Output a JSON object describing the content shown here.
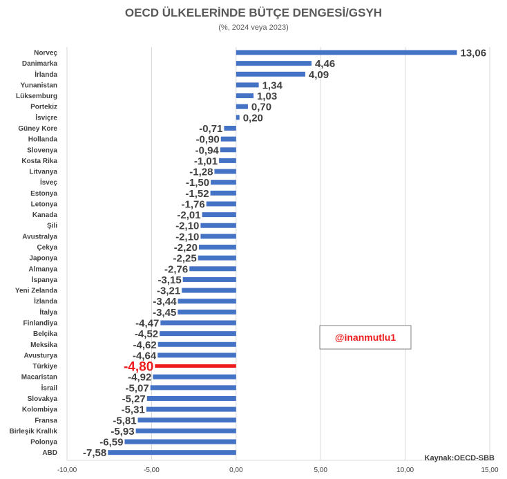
{
  "chart_data": {
    "type": "bar",
    "orientation": "horizontal",
    "title": "OECD ÜLKELERİNDE BÜTÇE DENGESİ/GSYH",
    "subtitle": "(%, 2024 veya 2023)",
    "categories": [
      "Norveç",
      "Danimarka",
      "İrlanda",
      "Yunanistan",
      "Lüksemburg",
      "Portekiz",
      "İsviçre",
      "Güney Kore",
      "Hollanda",
      "Slovenya",
      "Kosta Rika",
      "Litvanya",
      "İsveç",
      "Estonya",
      "Letonya",
      "Kanada",
      "Şili",
      "Avustralya",
      "Çekya",
      "Japonya",
      "Almanya",
      "İspanya",
      "Yeni Zelanda",
      "İzlanda",
      "İtalya",
      "Finlandiya",
      "Belçika",
      "Meksika",
      "Avusturya",
      "Türkiye",
      "Macaristan",
      "İsrail",
      "Slovakya",
      "Kolombiya",
      "Fransa",
      "Birleşik Krallık",
      "Polonya",
      "ABD"
    ],
    "values": [
      13.06,
      4.46,
      4.09,
      1.34,
      1.03,
      0.7,
      0.2,
      -0.71,
      -0.9,
      -0.94,
      -1.01,
      -1.28,
      -1.5,
      -1.52,
      -1.76,
      -2.01,
      -2.1,
      -2.1,
      -2.2,
      -2.25,
      -2.76,
      -3.15,
      -3.21,
      -3.44,
      -3.45,
      -4.47,
      -4.52,
      -4.62,
      -4.64,
      -4.8,
      -4.92,
      -5.07,
      -5.27,
      -5.31,
      -5.81,
      -5.93,
      -6.59,
      -7.58
    ],
    "value_labels": [
      "13,06",
      "4,46",
      "4,09",
      "1,34",
      "1,03",
      "0,70",
      "0,20",
      "-0,71",
      "-0,90",
      "-0,94",
      "-1,01",
      "-1,28",
      "-1,50",
      "-1,52",
      "-1,76",
      "-2,01",
      "-2,10",
      "-2,10",
      "-2,20",
      "-2,25",
      "-2,76",
      "-3,15",
      "-3,21",
      "-3,44",
      "-3,45",
      "-4,47",
      "-4,52",
      "-4,62",
      "-4,64",
      "-4,80",
      "-4,92",
      "-5,07",
      "-5,27",
      "-5,31",
      "-5,81",
      "-5,93",
      "-6,59",
      "-7,58"
    ],
    "highlight": "Türkiye",
    "xlim": [
      -10,
      15
    ],
    "xticks": [
      -10,
      -5,
      0,
      5,
      10,
      15
    ],
    "xtick_labels": [
      "-10,00",
      "-5,00",
      "0,00",
      "5,00",
      "10,00",
      "15,00"
    ],
    "grid": true,
    "legend": "none",
    "bar_color": "#4472c4",
    "highlight_color": "#ee1c1c",
    "source": "Kaynak:OECD-SBB",
    "watermark": "@inanmutlu1"
  }
}
